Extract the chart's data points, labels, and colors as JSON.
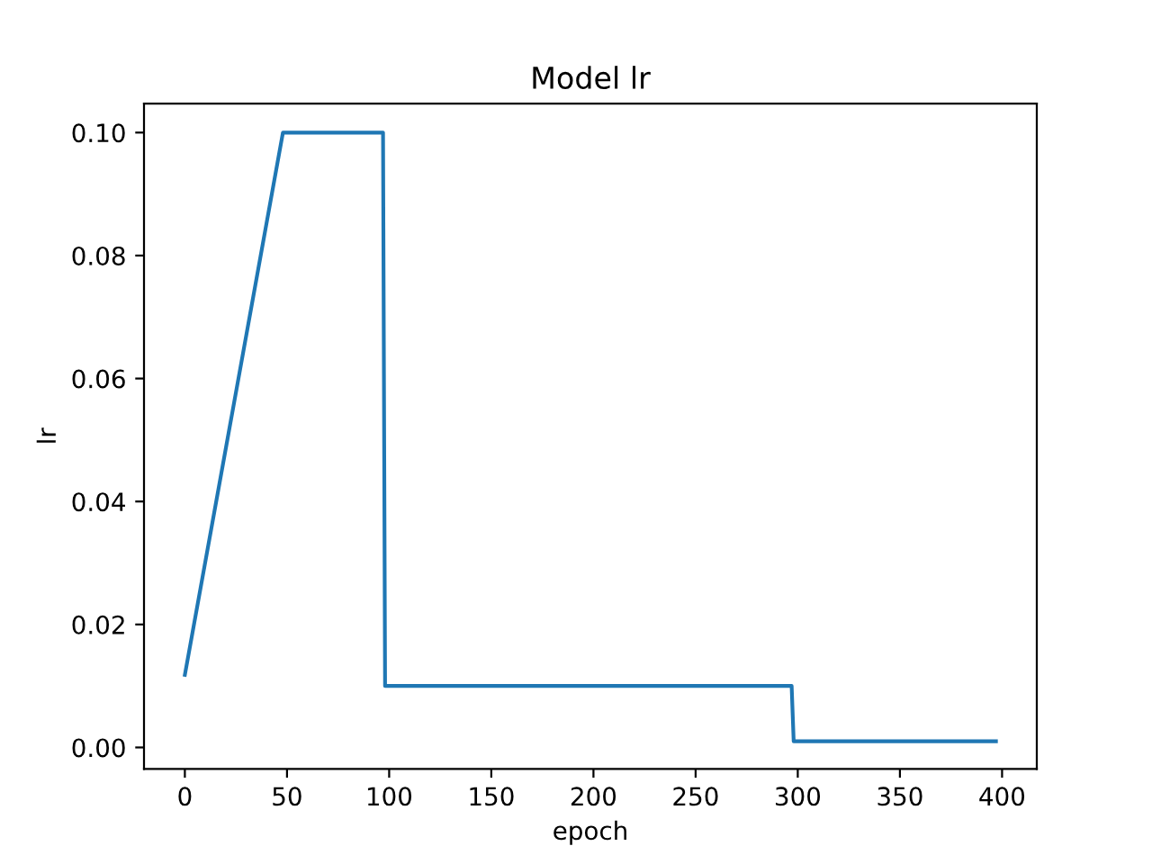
{
  "chart_data": {
    "type": "line",
    "title": "Model lr",
    "xlabel": "epoch",
    "ylabel": "lr",
    "series": [
      {
        "color": "#1f77b4",
        "x": [
          0,
          48,
          97,
          98,
          297,
          298,
          397
        ],
        "values": [
          0.0118,
          0.1,
          0.1,
          0.01,
          0.01,
          0.001,
          0.001
        ]
      }
    ],
    "xlim": [
      -20,
      417
    ],
    "ylim": [
      -0.0035,
      0.1047
    ],
    "xticks": [
      0,
      50,
      100,
      150,
      200,
      250,
      300,
      350,
      400
    ],
    "yticks": [
      {
        "value": 0,
        "label": "0.00"
      },
      {
        "value": 0.02,
        "label": "0.02"
      },
      {
        "value": 0.04,
        "label": "0.04"
      },
      {
        "value": 0.06,
        "label": "0.06"
      },
      {
        "value": 0.08,
        "label": "0.08"
      },
      {
        "value": 0.1,
        "label": "0.10"
      }
    ],
    "grid": false,
    "legend": false
  }
}
